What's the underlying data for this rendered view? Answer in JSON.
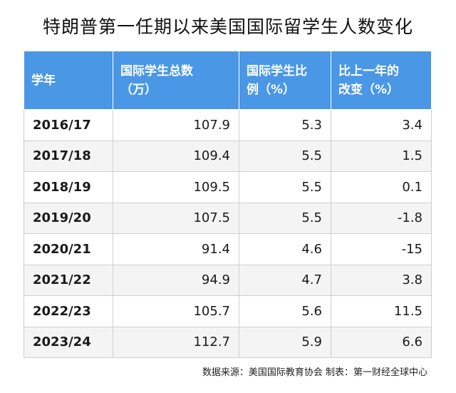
{
  "chart_data": {
    "type": "table",
    "title": "特朗普第一任期以来美国国际留学生人数变化",
    "columns": [
      "学年",
      "国际学生总数（万）",
      "国际学生比例（%）",
      "比上一年的改变（%）"
    ],
    "column_lines": [
      [
        "学年"
      ],
      [
        "国际学生总数",
        "（万）"
      ],
      [
        "国际学生比",
        "例（%）"
      ],
      [
        "比上一年的",
        "改变（%）"
      ]
    ],
    "rows": [
      {
        "year": "2016/17",
        "total": "107.9",
        "ratio": "5.3",
        "change": "3.4"
      },
      {
        "year": "2017/18",
        "total": "109.4",
        "ratio": "5.5",
        "change": "1.5"
      },
      {
        "year": "2018/19",
        "total": "109.5",
        "ratio": "5.5",
        "change": "0.1"
      },
      {
        "year": "2019/20",
        "total": "107.5",
        "ratio": "5.5",
        "change": "-1.8"
      },
      {
        "year": "2020/21",
        "total": "91.4",
        "ratio": "4.6",
        "change": "-15"
      },
      {
        "year": "2021/22",
        "total": "94.9",
        "ratio": "4.7",
        "change": "3.8"
      },
      {
        "year": "2022/23",
        "total": "105.7",
        "ratio": "5.6",
        "change": "11.5"
      },
      {
        "year": "2023/24",
        "total": "112.7",
        "ratio": "5.9",
        "change": "6.6"
      }
    ],
    "source": "数据来源：美国国际教育协会 制表：第一财经全球中心",
    "header_color": "#4a97e6",
    "stripe_color": "#f4f4f4"
  }
}
